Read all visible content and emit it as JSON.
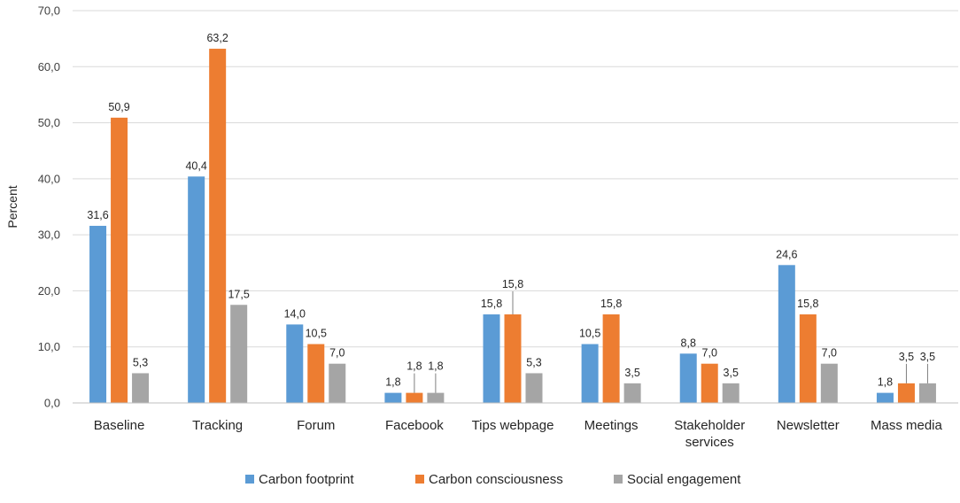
{
  "chart_data": {
    "type": "bar",
    "title": "",
    "xlabel": "",
    "ylabel": "Percent",
    "ylim": [
      0,
      70
    ],
    "ytick_step": 10,
    "ytick_labels": [
      "0,0",
      "10,0",
      "20,0",
      "30,0",
      "40,0",
      "50,0",
      "60,0",
      "70,0"
    ],
    "grid": true,
    "legend_position": "bottom",
    "categories": [
      [
        "Baseline"
      ],
      [
        "Tracking"
      ],
      [
        "Forum"
      ],
      [
        "Facebook"
      ],
      [
        "Tips webpage"
      ],
      [
        "Meetings"
      ],
      [
        "Stakeholder",
        "services"
      ],
      [
        "Newsletter"
      ],
      [
        "Mass media"
      ]
    ],
    "series": [
      {
        "name": "Carbon footprint",
        "color": "#5b9bd5",
        "values": [
          31.6,
          40.4,
          14.0,
          1.8,
          15.8,
          10.5,
          8.8,
          24.6,
          1.8
        ],
        "labels": [
          "31,6",
          "40,4",
          "14,0",
          "1,8",
          "15,8",
          "10,5",
          "8,8",
          "24,6",
          "1,8"
        ]
      },
      {
        "name": "Carbon consciousness",
        "color": "#ed7d31",
        "values": [
          50.9,
          63.2,
          10.5,
          1.8,
          15.8,
          15.8,
          7.0,
          15.8,
          3.5
        ],
        "labels": [
          "50,9",
          "63,2",
          "10,5",
          "1,8",
          "15,8",
          "15,8",
          "7,0",
          "15,8",
          "3,5"
        ]
      },
      {
        "name": "Social engagement",
        "color": "#a5a5a5",
        "values": [
          5.3,
          17.5,
          7.0,
          1.8,
          5.3,
          3.5,
          3.5,
          7.0,
          3.5
        ],
        "labels": [
          "5,3",
          "17,5",
          "7,0",
          "1,8",
          "5,3",
          "3,5",
          "3,5",
          "7,0",
          "3,5"
        ]
      }
    ]
  }
}
